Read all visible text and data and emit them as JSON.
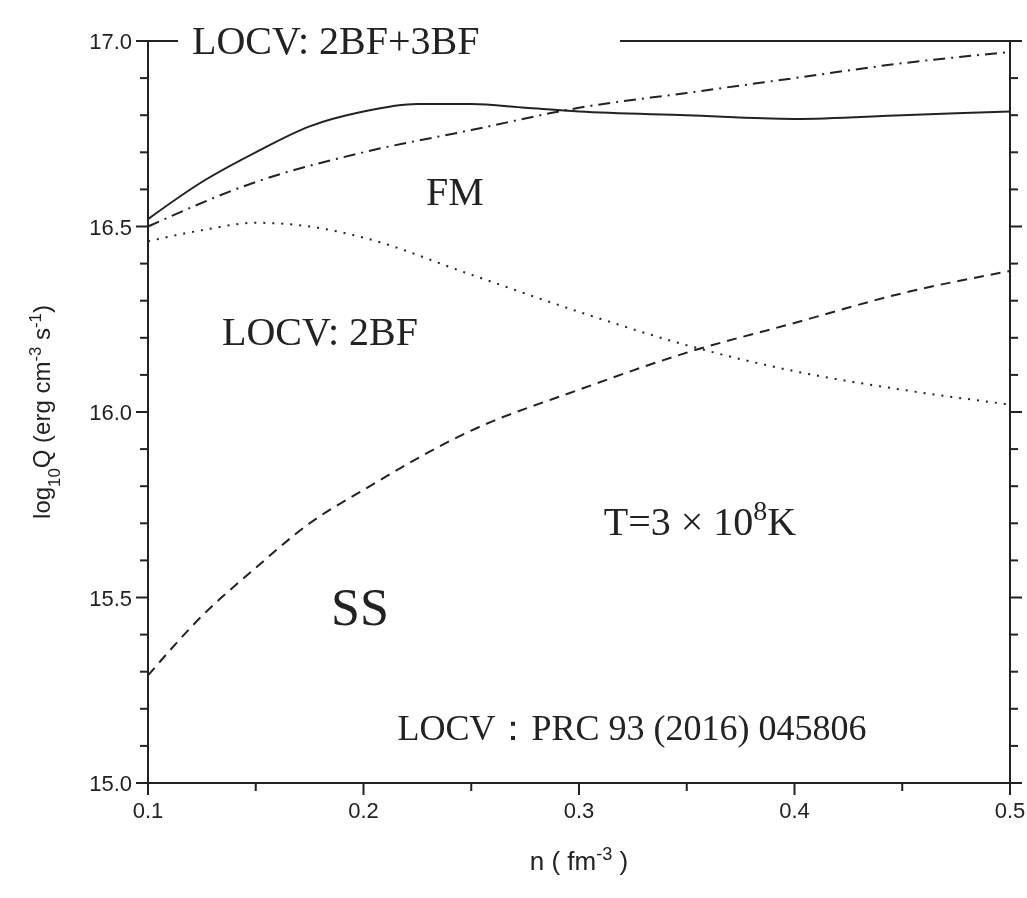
{
  "chart_data": {
    "type": "line",
    "xlabel": "n ( fm$^{-3}$ )",
    "ylabel": "log$_{10}$Q (erg cm$^{-3}$ s$^{-1}$)",
    "xlim": [
      0.1,
      0.5
    ],
    "xticks": [
      0.1,
      {
        "value": 0.15,
        "label": null
      },
      0.2,
      {
        "value": 0.25,
        "label": null
      },
      0.3,
      {
        "value": 0.35,
        "label": null
      },
      0.4,
      {
        "value": 0.45,
        "label": null
      },
      0.5
    ],
    "ylim": [
      15.0,
      17.0
    ],
    "yticks": [
      {
        "value": 15.0,
        "label": "15.0"
      },
      {
        "value": 15.1,
        "label": null
      },
      {
        "value": 15.2,
        "label": null
      },
      {
        "value": 15.3,
        "label": null
      },
      {
        "value": 15.4,
        "label": null
      },
      {
        "value": 15.5,
        "label": "15.5"
      },
      {
        "value": 15.6,
        "label": null
      },
      {
        "value": 15.7,
        "label": null
      },
      {
        "value": 15.8,
        "label": null
      },
      {
        "value": 15.9,
        "label": null
      },
      {
        "value": 16.0,
        "label": "16.0"
      },
      {
        "value": 16.1,
        "label": null
      },
      {
        "value": 16.2,
        "label": null
      },
      {
        "value": 16.3,
        "label": null
      },
      {
        "value": 16.4,
        "label": null
      },
      {
        "value": 16.5,
        "label": "16.5"
      },
      {
        "value": 16.6,
        "label": null
      },
      {
        "value": 16.7,
        "label": null
      },
      {
        "value": 16.8,
        "label": null
      },
      {
        "value": 16.9,
        "label": null
      },
      {
        "value": 17.0,
        "label": "17.0"
      }
    ],
    "legend": "top",
    "series": [
      {
        "name": "LOCV: 2BF+3BF",
        "color": "#222222",
        "line_style": "solid",
        "x": [
          0.1,
          0.125,
          0.15,
          0.175,
          0.2,
          0.225,
          0.25,
          0.275,
          0.3,
          0.35,
          0.4,
          0.45,
          0.5
        ],
        "values": [
          16.52,
          16.62,
          16.7,
          16.77,
          16.81,
          16.83,
          16.83,
          16.82,
          16.81,
          16.8,
          16.79,
          16.8,
          16.81
        ]
      },
      {
        "name": "FM",
        "color": "#222222",
        "line_style": "dashdot",
        "x": [
          0.1,
          0.15,
          0.2,
          0.25,
          0.3,
          0.35,
          0.4,
          0.45,
          0.5
        ],
        "values": [
          16.5,
          16.62,
          16.7,
          16.76,
          16.82,
          16.86,
          16.9,
          16.94,
          16.97
        ]
      },
      {
        "name": "LOCV: 2BF",
        "color": "#222222",
        "line_style": "dotted",
        "x": [
          0.1,
          0.125,
          0.15,
          0.175,
          0.2,
          0.25,
          0.3,
          0.35,
          0.4,
          0.45,
          0.5
        ],
        "values": [
          16.46,
          16.49,
          16.51,
          16.5,
          16.47,
          16.37,
          16.27,
          16.18,
          16.11,
          16.06,
          16.02
        ]
      },
      {
        "name": "SS",
        "color": "#222222",
        "line_style": "dashed",
        "x": [
          0.1,
          0.125,
          0.15,
          0.175,
          0.2,
          0.25,
          0.3,
          0.35,
          0.4,
          0.45,
          0.5
        ],
        "values": [
          15.29,
          15.45,
          15.58,
          15.7,
          15.79,
          15.95,
          16.06,
          16.16,
          16.24,
          16.32,
          16.38
        ]
      }
    ],
    "annotations": [
      "T=3 × 10$^{8}$K",
      "LOCV：PRC 93 (2016) 045806"
    ]
  }
}
